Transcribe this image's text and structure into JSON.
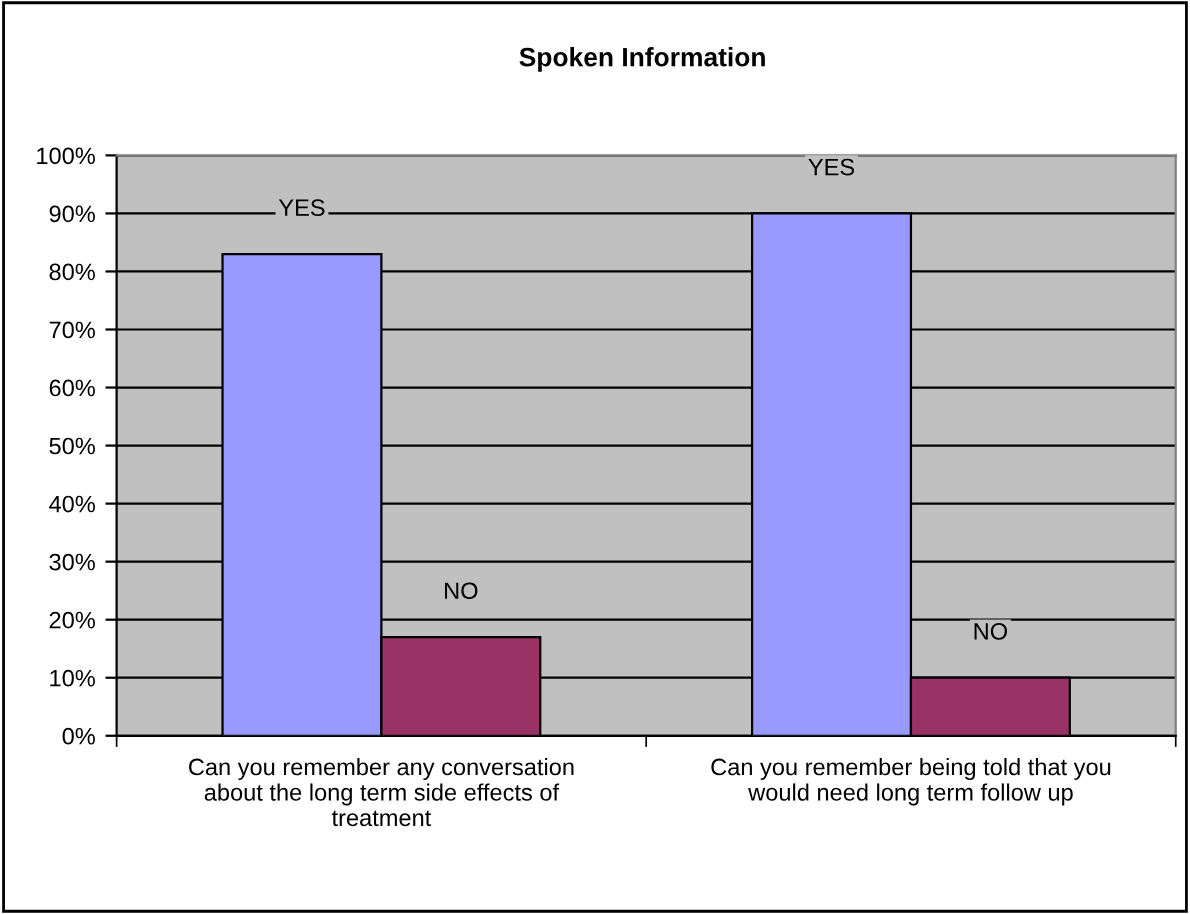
{
  "chart_data": {
    "type": "bar",
    "title": "Spoken Information",
    "categories": [
      "Can you remember any conversation\nabout the long term side effects of\ntreatment",
      "Can you remember being told that you\nwould need long term follow up"
    ],
    "series": [
      {
        "name": "YES",
        "color": "#9999ff",
        "values": [
          83,
          90
        ]
      },
      {
        "name": "NO",
        "color": "#993366",
        "values": [
          17,
          10
        ]
      }
    ],
    "ylim": [
      0,
      100
    ],
    "yticks": [
      {
        "value": 0,
        "label": "0%"
      },
      {
        "value": 10,
        "label": "10%"
      },
      {
        "value": 20,
        "label": "20%"
      },
      {
        "value": 30,
        "label": "30%"
      },
      {
        "value": 40,
        "label": "40%"
      },
      {
        "value": 50,
        "label": "50%"
      },
      {
        "value": 60,
        "label": "60%"
      },
      {
        "value": 70,
        "label": "70%"
      },
      {
        "value": 80,
        "label": "80%"
      },
      {
        "value": 90,
        "label": "90%"
      },
      {
        "value": 100,
        "label": "100%"
      }
    ],
    "grid": "y",
    "legend": false
  }
}
